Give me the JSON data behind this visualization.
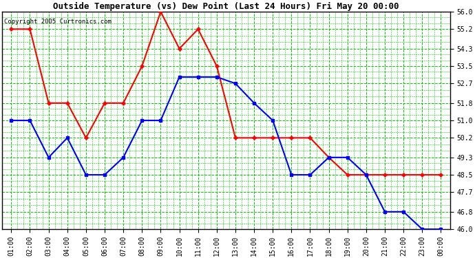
{
  "title": "Outside Temperature (vs) Dew Point (Last 24 Hours) Fri May 20 00:00",
  "copyright": "Copyright 2005 Curtronics.com",
  "background_color": "#ffffff",
  "plot_bg_color": "#ffffff",
  "grid_color": "#00cc00",
  "x_labels": [
    "01:00",
    "02:00",
    "03:00",
    "04:00",
    "05:00",
    "06:00",
    "07:00",
    "08:00",
    "09:00",
    "10:00",
    "11:00",
    "12:00",
    "13:00",
    "14:00",
    "15:00",
    "16:00",
    "17:00",
    "18:00",
    "19:00",
    "20:00",
    "21:00",
    "22:00",
    "23:00",
    "00:00"
  ],
  "ylim": [
    46.0,
    56.0
  ],
  "yticks": [
    46.0,
    46.8,
    47.7,
    48.5,
    49.3,
    50.2,
    51.0,
    51.8,
    52.7,
    53.5,
    54.3,
    55.2,
    56.0
  ],
  "red_line": {
    "color": "red",
    "values": [
      55.2,
      55.2,
      51.8,
      51.8,
      50.2,
      51.8,
      51.8,
      53.5,
      56.0,
      54.3,
      55.2,
      53.5,
      50.2,
      50.2,
      50.2,
      50.2,
      50.2,
      49.3,
      48.5,
      48.5,
      48.5,
      48.5,
      48.5,
      48.5
    ]
  },
  "blue_line": {
    "color": "blue",
    "values": [
      51.0,
      51.0,
      49.3,
      50.2,
      48.5,
      48.5,
      49.3,
      51.0,
      51.0,
      53.0,
      53.0,
      53.0,
      52.7,
      51.8,
      51.0,
      48.5,
      48.5,
      49.3,
      49.3,
      48.5,
      46.8,
      46.8,
      46.0,
      46.0
    ]
  },
  "marker_red": "+",
  "marker_blue": "s",
  "linewidth": 1.5,
  "markersize_red": 5,
  "markersize_blue": 3,
  "title_fontsize": 9,
  "tick_fontsize": 7
}
